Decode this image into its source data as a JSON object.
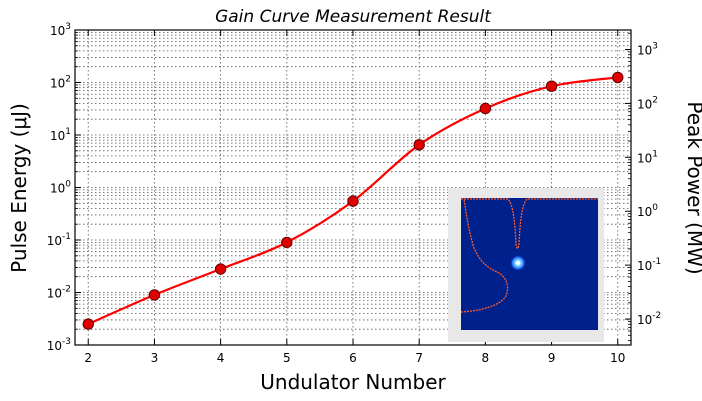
{
  "chart_data": {
    "type": "line",
    "title": "Gain Curve Measurement Result",
    "xlabel": "Undulator Number",
    "ylabel": "Pulse Energy (μJ)",
    "y2label": "Peak Power (MW)",
    "yscale": "log",
    "y2scale": "log",
    "xlim": [
      1.8,
      10.2
    ],
    "ylim": [
      0.001,
      1000
    ],
    "y2lim": [
      0.0033,
      2300
    ],
    "x_ticks": [
      "2",
      "3",
      "4",
      "5",
      "6",
      "7",
      "8",
      "9",
      "10"
    ],
    "y_ticks": [
      {
        "base": "10",
        "exp": "-3"
      },
      {
        "base": "10",
        "exp": "-2"
      },
      {
        "base": "10",
        "exp": "-1"
      },
      {
        "base": "10",
        "exp": "0"
      },
      {
        "base": "10",
        "exp": "1"
      },
      {
        "base": "10",
        "exp": "2"
      },
      {
        "base": "10",
        "exp": "3"
      }
    ],
    "y2_ticks": [
      {
        "base": "10",
        "exp": "-2"
      },
      {
        "base": "10",
        "exp": "-1"
      },
      {
        "base": "10",
        "exp": "0"
      },
      {
        "base": "10",
        "exp": "1"
      },
      {
        "base": "10",
        "exp": "2"
      },
      {
        "base": "10",
        "exp": "3"
      }
    ],
    "grid": true,
    "series": [
      {
        "x": [
          2,
          3,
          4,
          5,
          6,
          7,
          8,
          9,
          10
        ],
        "values": [
          0.0025,
          0.009,
          0.028,
          0.09,
          0.55,
          6.5,
          32,
          85,
          125
        ],
        "line_color": "#ff0000",
        "marker_color": "#e00000",
        "marker_edge": "#660000"
      }
    ],
    "inset": {
      "description_colors": {
        "background": "#00208c",
        "frame": "#e6e6e6",
        "curve": "#ff5a2a",
        "spot": "#7fd8ff"
      }
    }
  }
}
